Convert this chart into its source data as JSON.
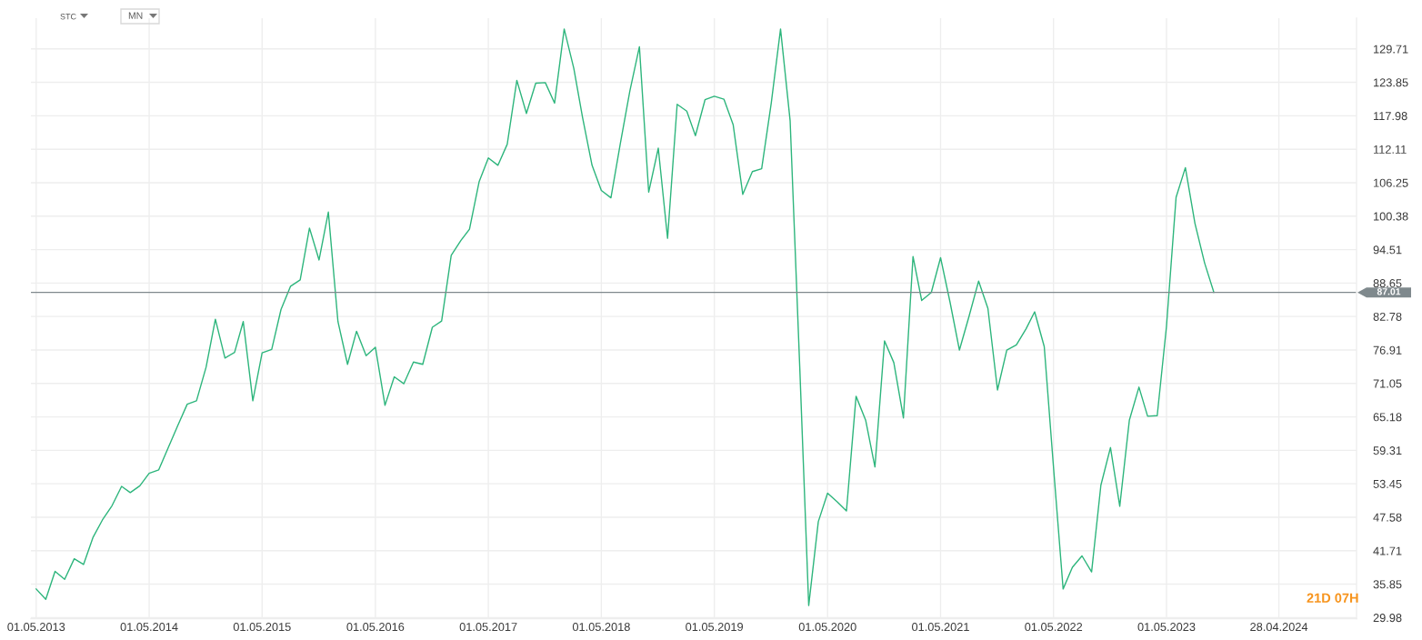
{
  "chart_data": {
    "type": "line",
    "color": "#2db57c",
    "x": [
      "2013-05-01",
      "2013-06-01",
      "2013-07-01",
      "2013-08-01",
      "2013-09-01",
      "2013-10-01",
      "2013-11-01",
      "2013-12-01",
      "2014-01-01",
      "2014-02-01",
      "2014-03-01",
      "2014-04-01",
      "2014-05-01",
      "2014-06-01",
      "2014-07-01",
      "2014-08-01",
      "2014-09-01",
      "2014-10-01",
      "2014-11-01",
      "2014-12-01",
      "2015-01-01",
      "2015-02-01",
      "2015-03-01",
      "2015-04-01",
      "2015-05-01",
      "2015-06-01",
      "2015-07-01",
      "2015-08-01",
      "2015-09-01",
      "2015-10-01",
      "2015-11-01",
      "2015-12-01",
      "2016-01-01",
      "2016-02-01",
      "2016-03-01",
      "2016-04-01",
      "2016-05-01",
      "2016-06-01",
      "2016-07-01",
      "2016-08-01",
      "2016-09-01",
      "2016-10-01",
      "2016-11-01",
      "2016-12-01",
      "2017-01-01",
      "2017-02-01",
      "2017-03-01",
      "2017-04-01",
      "2017-05-01",
      "2017-06-01",
      "2017-07-01",
      "2017-08-01",
      "2017-09-01",
      "2017-10-01",
      "2017-11-01",
      "2017-12-01",
      "2018-01-01",
      "2018-02-01",
      "2018-03-01",
      "2018-04-01",
      "2018-05-01",
      "2018-06-01",
      "2018-07-01",
      "2018-08-01",
      "2018-09-01",
      "2018-10-01",
      "2018-11-01",
      "2018-12-01",
      "2019-01-01",
      "2019-02-01",
      "2019-03-01",
      "2019-04-01",
      "2019-05-01",
      "2019-06-01",
      "2019-07-01",
      "2019-08-01",
      "2019-09-01",
      "2019-10-01",
      "2019-11-01",
      "2019-12-01",
      "2020-01-01",
      "2020-02-01",
      "2020-03-01",
      "2020-04-01",
      "2020-05-01",
      "2020-06-01",
      "2020-07-01",
      "2020-08-01",
      "2020-09-01",
      "2020-10-01",
      "2020-11-01",
      "2020-12-01",
      "2021-01-01",
      "2021-02-01",
      "2021-03-01",
      "2021-04-01",
      "2021-05-01",
      "2021-06-01",
      "2021-07-01",
      "2021-08-01",
      "2021-09-01",
      "2021-10-01",
      "2021-11-01",
      "2021-12-01",
      "2022-01-01",
      "2022-02-01",
      "2022-03-01",
      "2022-04-01",
      "2022-05-01",
      "2022-06-01",
      "2022-07-01",
      "2022-08-01",
      "2022-09-01",
      "2022-10-01",
      "2022-11-01",
      "2022-12-01",
      "2023-01-01",
      "2023-02-01",
      "2023-03-01",
      "2023-04-01",
      "2023-05-01",
      "2023-06-01",
      "2023-07-01",
      "2023-08-01",
      "2023-09-01",
      "2023-10-01"
    ],
    "values": [
      35.0,
      33.2,
      38.1,
      36.7,
      40.3,
      39.3,
      44.1,
      47.1,
      49.6,
      53.0,
      51.9,
      53.1,
      55.3,
      55.9,
      59.7,
      63.6,
      67.4,
      68.0,
      73.9,
      82.3,
      75.5,
      76.5,
      81.9,
      68.0,
      76.4,
      77.0,
      84.0,
      88.1,
      89.2,
      98.3,
      92.7,
      101.1,
      81.9,
      74.4,
      80.2,
      75.9,
      77.4,
      67.2,
      72.2,
      71.0,
      74.8,
      74.4,
      80.9,
      82.0,
      93.5,
      96.1,
      98.1,
      106.4,
      110.6,
      109.3,
      113.0,
      124.2,
      118.4,
      123.7,
      123.8,
      120.2,
      133.2,
      126.3,
      117.8,
      109.3,
      104.9,
      103.6,
      113.0,
      122.3,
      130.1,
      104.6,
      112.3,
      96.5,
      120.0,
      118.8,
      114.5,
      120.8,
      121.4,
      120.9,
      116.4,
      104.2,
      108.2,
      108.7,
      120.2,
      133.2,
      117.1,
      74.0,
      32.1,
      46.8,
      51.8,
      50.3,
      48.7,
      68.8,
      64.6,
      56.4,
      78.5,
      74.7,
      65.0,
      93.3,
      85.6,
      87.0,
      93.1,
      85.2,
      76.9,
      82.8,
      89.0,
      84.2,
      69.9,
      76.9,
      77.8,
      80.6,
      83.6,
      77.5,
      56.3,
      35.0,
      38.8,
      40.8,
      38.0,
      53.2,
      59.8,
      49.5,
      64.6,
      70.4,
      65.3,
      65.4,
      81.1,
      103.7,
      108.9,
      99.1,
      92.2,
      87.01
    ],
    "xlim": [
      "2013-04-14",
      "2025-01-04"
    ],
    "xticks": [
      {
        "value": "2013-05-01",
        "label": "01.05.2013"
      },
      {
        "value": "2014-05-01",
        "label": "01.05.2014"
      },
      {
        "value": "2015-05-01",
        "label": "01.05.2015"
      },
      {
        "value": "2016-05-01",
        "label": "01.05.2016"
      },
      {
        "value": "2017-05-01",
        "label": "01.05.2017"
      },
      {
        "value": "2018-05-01",
        "label": "01.05.2018"
      },
      {
        "value": "2019-05-01",
        "label": "01.05.2019"
      },
      {
        "value": "2020-05-01",
        "label": "01.05.2020"
      },
      {
        "value": "2021-05-01",
        "label": "01.05.2021"
      },
      {
        "value": "2022-05-01",
        "label": "01.05.2022"
      },
      {
        "value": "2023-05-01",
        "label": "01.05.2023"
      },
      {
        "value": "2024-04-28",
        "label": "28.04.2024"
      }
    ],
    "ylim": [
      29.8,
      135.1
    ],
    "yticks": [
      29.98,
      35.85,
      41.71,
      47.58,
      53.45,
      59.31,
      65.18,
      71.05,
      76.91,
      82.78,
      88.65,
      94.51,
      100.38,
      106.25,
      112.11,
      117.98,
      123.85,
      129.71
    ],
    "grid": true,
    "ref_lines": [
      {
        "axis": "y",
        "value": 87.01,
        "label": "87.01",
        "color": "#7f898d"
      }
    ],
    "annotations": [
      "STC",
      "MN",
      "21D 07H"
    ]
  }
}
